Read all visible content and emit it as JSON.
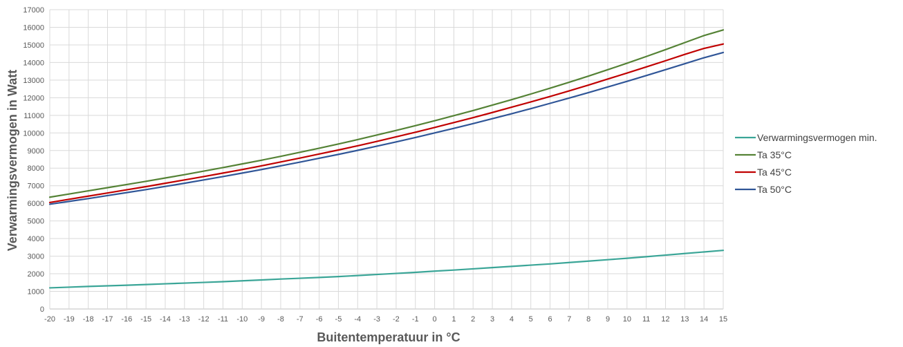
{
  "chart_data": {
    "type": "line",
    "title": "",
    "xlabel": "Buitentemperatuur in °C",
    "ylabel": "Verwarmingsvermogen in Watt",
    "x": [
      -20,
      -19,
      -18,
      -17,
      -16,
      -15,
      -14,
      -13,
      -12,
      -11,
      -10,
      -9,
      -8,
      -7,
      -6,
      -5,
      -4,
      -3,
      -2,
      -1,
      0,
      1,
      2,
      3,
      4,
      5,
      6,
      7,
      8,
      9,
      10,
      11,
      12,
      13,
      14,
      15
    ],
    "xlim": [
      -20,
      15
    ],
    "ylim": [
      0,
      17000
    ],
    "yticks": [
      0,
      1000,
      2000,
      3000,
      4000,
      5000,
      6000,
      7000,
      8000,
      9000,
      10000,
      11000,
      12000,
      13000,
      14000,
      15000,
      16000,
      17000
    ],
    "grid": true,
    "legend_position": "right",
    "series": [
      {
        "name": "Verwarmingsvermogen min.",
        "color": "#3aa597",
        "values": [
          1200,
          1240,
          1280,
          1315,
          1350,
          1390,
          1430,
          1470,
          1510,
          1550,
          1600,
          1650,
          1700,
          1745,
          1790,
          1840,
          1900,
          1960,
          2020,
          2080,
          2150,
          2210,
          2280,
          2350,
          2420,
          2490,
          2560,
          2640,
          2720,
          2800,
          2880,
          2970,
          3060,
          3150,
          3240,
          3330
        ]
      },
      {
        "name": "Ta 35°C",
        "color": "#548235",
        "values": [
          6350,
          6530,
          6710,
          6890,
          7070,
          7250,
          7440,
          7630,
          7830,
          8030,
          8240,
          8450,
          8670,
          8900,
          9130,
          9370,
          9620,
          9880,
          10140,
          10410,
          10690,
          10980,
          11270,
          11580,
          11890,
          12210,
          12540,
          12880,
          13230,
          13590,
          13960,
          14340,
          14730,
          15130,
          15530,
          15850
        ]
      },
      {
        "name": "Ta 45°C",
        "color": "#c00000",
        "values": [
          6050,
          6230,
          6410,
          6590,
          6770,
          6950,
          7140,
          7330,
          7520,
          7720,
          7920,
          8130,
          8350,
          8570,
          8800,
          9030,
          9270,
          9520,
          9780,
          10040,
          10310,
          10590,
          10870,
          11160,
          11460,
          11760,
          12070,
          12390,
          12720,
          13060,
          13400,
          13750,
          14100,
          14460,
          14800,
          15050
        ]
      },
      {
        "name": "Ta 50°C",
        "color": "#2f5597",
        "values": [
          5950,
          6110,
          6270,
          6440,
          6610,
          6780,
          6960,
          7140,
          7330,
          7520,
          7720,
          7920,
          8130,
          8340,
          8560,
          8780,
          9010,
          9250,
          9490,
          9740,
          10000,
          10260,
          10530,
          10810,
          11090,
          11380,
          11680,
          11980,
          12290,
          12610,
          12930,
          13260,
          13590,
          13930,
          14270,
          14570
        ]
      }
    ]
  }
}
